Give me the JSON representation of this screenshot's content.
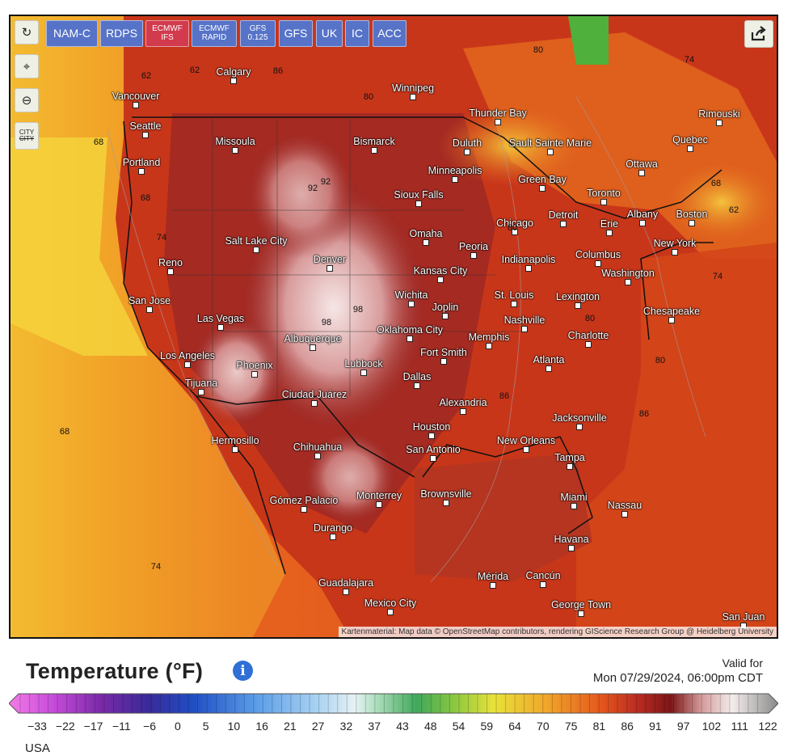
{
  "map": {
    "controls": [
      {
        "name": "refresh-icon",
        "glyph": "↻"
      },
      {
        "name": "location-pin-icon",
        "glyph": "⌖"
      },
      {
        "name": "zoom-out-icon",
        "glyph": "⊖"
      },
      {
        "name": "city-toggle-icon",
        "glyph": "CITY"
      }
    ],
    "models": [
      {
        "label": "NAM-C",
        "color": "blue"
      },
      {
        "label": "RDPS",
        "color": "blue"
      },
      {
        "label": "ECMWF\nIFS",
        "color": "red"
      },
      {
        "label": "ECMWF\nRAPID",
        "color": "blue"
      },
      {
        "label": "GFS\n0.125",
        "color": "blue"
      },
      {
        "label": "GFS",
        "color": "blue"
      },
      {
        "label": "UK",
        "color": "blue"
      },
      {
        "label": "IC",
        "color": "blue"
      },
      {
        "label": "ACC",
        "color": "blue"
      }
    ],
    "cities": [
      "Vancouver",
      "Calgary",
      "Winnipeg",
      "Thunder Bay",
      "Rimouski",
      "Seattle",
      "Missoula",
      "Bismarck",
      "Duluth",
      "Sault Sainte Marie",
      "Quebec",
      "Portland",
      "Minneapolis",
      "Green Bay",
      "Ottawa",
      "Sioux Falls",
      "Toronto",
      "Albany",
      "Boston",
      "Salt Lake City",
      "Omaha",
      "Chicago",
      "Detroit",
      "Erie",
      "Reno",
      "Denver",
      "Peoria",
      "Indianapolis",
      "Columbus",
      "New York",
      "Kansas City",
      "Washington",
      "San Jose",
      "Wichita",
      "St. Louis",
      "Lexington",
      "Las Vegas",
      "Joplin",
      "Oklahoma City",
      "Nashville",
      "Chesapeake",
      "Albuquerque",
      "Memphis",
      "Charlotte",
      "Los Angeles",
      "Fort Smith",
      "Phoenix",
      "Lubbock",
      "Atlanta",
      "Tijuana",
      "Dallas",
      "Ciudad Juárez",
      "Alexandria",
      "Jacksonville",
      "Hermosillo",
      "Houston",
      "Chihuahua",
      "New Orleans",
      "San Antonio",
      "Tampa",
      "Brownsville",
      "Monterrey",
      "Gómez Palacio",
      "Miami",
      "Nassau",
      "Durango",
      "Havana",
      "Mérida",
      "Cancún",
      "Guadalajara",
      "George Town",
      "Mexico City",
      "San Juan"
    ],
    "isotherm_labels": [
      "62",
      "62",
      "68",
      "74",
      "80",
      "86",
      "92",
      "98",
      "80",
      "74",
      "68",
      "62",
      "68",
      "68",
      "74",
      "80",
      "86",
      "80",
      "74",
      "80",
      "86",
      "92",
      "98"
    ],
    "credit": "Kartenmaterial: Map data © OpenStreetMap contributors, rendering GIScience Research Group @ Heidelberg University"
  },
  "legend": {
    "title": "Temperature (°F)",
    "valid_label": "Valid for",
    "valid_time": "Mon 07/29/2024, 06:00pm CDT",
    "ticks": [
      "−33",
      "−22",
      "−17",
      "−11",
      "−6",
      "0",
      "5",
      "10",
      "16",
      "21",
      "27",
      "32",
      "37",
      "43",
      "48",
      "54",
      "59",
      "64",
      "70",
      "75",
      "81",
      "86",
      "91",
      "97",
      "102",
      "111",
      "122"
    ],
    "region": "USA"
  }
}
